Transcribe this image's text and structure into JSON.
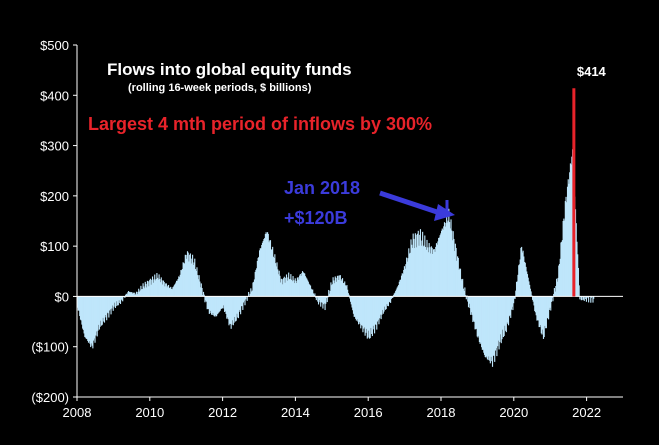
{
  "chart_data": {
    "type": "bar",
    "title": "Flows into global equity funds",
    "subtitle": "(rolling  16-week periods, $ billions)",
    "xlabel": "",
    "ylabel": "",
    "xlim": [
      2008,
      2023
    ],
    "ylim": [
      -200,
      500
    ],
    "x_ticks": [
      "2008",
      "2010",
      "2012",
      "2014",
      "2016",
      "2018",
      "2020",
      "2022"
    ],
    "y_ticks": [
      "$500",
      "$400",
      "$300",
      "$200",
      "$100",
      "$0",
      "($100)",
      "($200)"
    ],
    "grid": false,
    "legend": "none",
    "colors": {
      "series": "#bfe6fb",
      "highlight": "#e8232a",
      "annotation_blue": "#3b3bdb",
      "background": "#000000",
      "text": "#ffffff"
    },
    "series": [
      {
        "values": [
          [
            2008.0,
            -20
          ],
          [
            2008.2,
            -80
          ],
          [
            2008.4,
            -100
          ],
          [
            2008.6,
            -60
          ],
          [
            2008.8,
            -40
          ],
          [
            2009.0,
            -20
          ],
          [
            2009.2,
            -10
          ],
          [
            2009.4,
            10
          ],
          [
            2009.6,
            5
          ],
          [
            2009.8,
            20
          ],
          [
            2010.0,
            30
          ],
          [
            2010.2,
            40
          ],
          [
            2010.4,
            25
          ],
          [
            2010.6,
            15
          ],
          [
            2010.8,
            40
          ],
          [
            2011.0,
            85
          ],
          [
            2011.2,
            70
          ],
          [
            2011.4,
            20
          ],
          [
            2011.6,
            -30
          ],
          [
            2011.8,
            -40
          ],
          [
            2012.0,
            -20
          ],
          [
            2012.2,
            -60
          ],
          [
            2012.4,
            -40
          ],
          [
            2012.6,
            -10
          ],
          [
            2012.8,
            15
          ],
          [
            2013.0,
            90
          ],
          [
            2013.2,
            130
          ],
          [
            2013.4,
            80
          ],
          [
            2013.6,
            30
          ],
          [
            2013.8,
            40
          ],
          [
            2014.0,
            30
          ],
          [
            2014.2,
            50
          ],
          [
            2014.4,
            20
          ],
          [
            2014.6,
            -10
          ],
          [
            2014.8,
            -20
          ],
          [
            2015.0,
            30
          ],
          [
            2015.2,
            40
          ],
          [
            2015.4,
            20
          ],
          [
            2015.6,
            -40
          ],
          [
            2015.8,
            -60
          ],
          [
            2016.0,
            -80
          ],
          [
            2016.2,
            -60
          ],
          [
            2016.4,
            -30
          ],
          [
            2016.6,
            -10
          ],
          [
            2016.8,
            20
          ],
          [
            2017.0,
            60
          ],
          [
            2017.2,
            110
          ],
          [
            2017.4,
            120
          ],
          [
            2017.6,
            100
          ],
          [
            2017.8,
            90
          ],
          [
            2018.0,
            130
          ],
          [
            2018.2,
            160
          ],
          [
            2018.4,
            90
          ],
          [
            2018.6,
            20
          ],
          [
            2018.8,
            -30
          ],
          [
            2019.0,
            -80
          ],
          [
            2019.2,
            -120
          ],
          [
            2019.4,
            -130
          ],
          [
            2019.6,
            -90
          ],
          [
            2019.8,
            -60
          ],
          [
            2020.0,
            -10
          ],
          [
            2020.2,
            100
          ],
          [
            2020.4,
            30
          ],
          [
            2020.6,
            -40
          ],
          [
            2020.8,
            -80
          ],
          [
            2021.0,
            -20
          ],
          [
            2021.2,
            40
          ],
          [
            2021.4,
            180
          ],
          [
            2021.6,
            290
          ],
          [
            2021.8,
            -5
          ],
          [
            2022.0,
            -5
          ],
          [
            2022.2,
            -5
          ]
        ]
      }
    ],
    "highlight": {
      "x": 2021.65,
      "value": 414,
      "label": "$414"
    },
    "annotations": [
      {
        "text": "Largest 4 mth period of inflows by 300%",
        "color": "red"
      },
      {
        "text": "Jan 2018",
        "color": "blue"
      },
      {
        "text": "+$120B",
        "color": "blue"
      }
    ]
  }
}
